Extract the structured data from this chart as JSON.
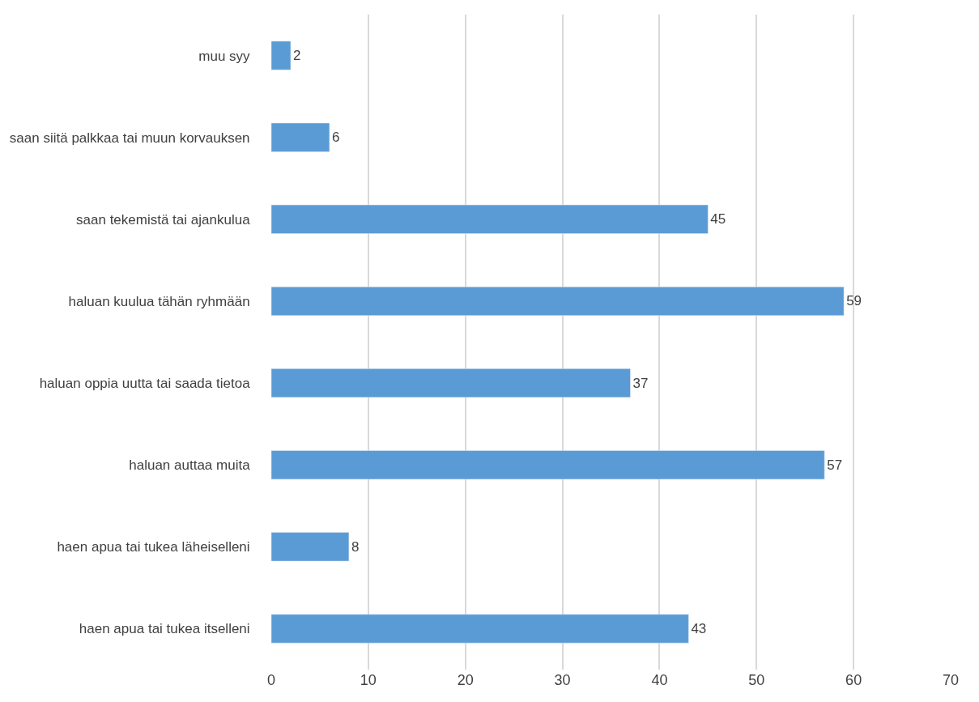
{
  "chart_data": {
    "type": "bar",
    "orientation": "horizontal",
    "categories": [
      "muu syy",
      "saan siitä palkkaa tai muun korvauksen",
      "saan tekemistä tai ajankulua",
      "haluan kuulua tähän ryhmään",
      "haluan oppia uutta tai saada tietoa",
      "haluan auttaa muita",
      "haen apua tai tukea läheiselleni",
      "haen apua tai tukea itselleni"
    ],
    "values": [
      2,
      6,
      45,
      59,
      37,
      57,
      8,
      43
    ],
    "color": "#5b9bd5",
    "xlim": [
      0,
      70
    ],
    "xticks": [
      0,
      10,
      20,
      30,
      40,
      50,
      60,
      70
    ],
    "grid": "x",
    "data_labels": true
  }
}
